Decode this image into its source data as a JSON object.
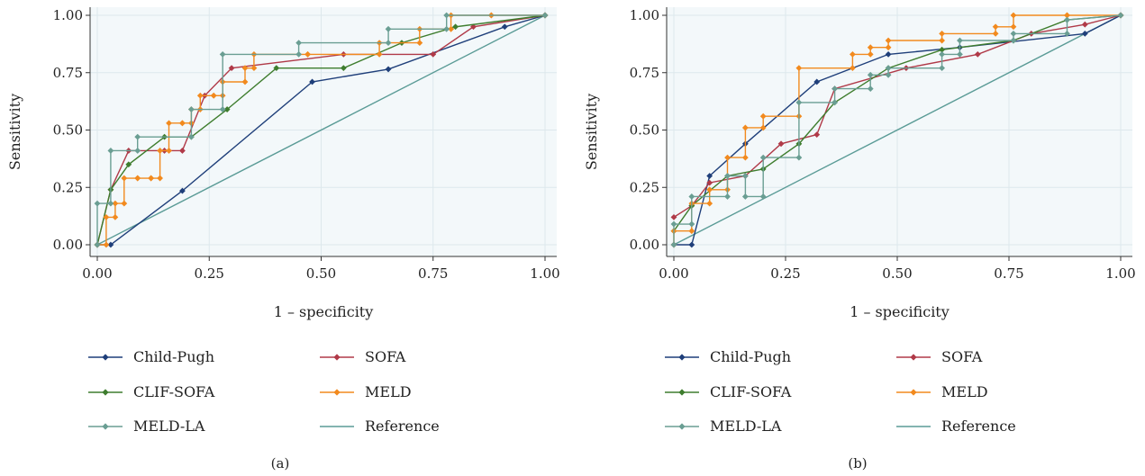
{
  "figure": {
    "panels": [
      "(a)",
      "(b)"
    ]
  },
  "chart_data": [
    {
      "type": "line",
      "panel_label": "(a)",
      "xlabel": "1 – specificity",
      "ylabel": "Sensitivity",
      "xlim": [
        0,
        1
      ],
      "ylim": [
        0,
        1
      ],
      "xticks": [
        "0.00",
        "0.25",
        "0.50",
        "0.75",
        "1.00"
      ],
      "yticks": [
        "0.00",
        "0.25",
        "0.50",
        "0.75",
        "1.00"
      ],
      "grid": true,
      "legend_position": "bottom",
      "series": [
        {
          "name": "Child-Pugh",
          "color": "#1f3f7a",
          "marker": "diamond",
          "x": [
            0,
            0.03,
            0.19,
            0.48,
            0.65,
            0.91,
            1.0
          ],
          "y": [
            0,
            0,
            0.235,
            0.71,
            0.765,
            0.95,
            1.0
          ]
        },
        {
          "name": "SOFA",
          "color": "#b03a48",
          "marker": "diamond",
          "x": [
            0,
            0.03,
            0.07,
            0.15,
            0.19,
            0.24,
            0.3,
            0.55,
            0.75,
            0.84,
            1.0
          ],
          "y": [
            0,
            0.24,
            0.41,
            0.41,
            0.41,
            0.65,
            0.77,
            0.83,
            0.83,
            0.95,
            1.0
          ]
        },
        {
          "name": "CLIF-SOFA",
          "color": "#3e7d2e",
          "marker": "diamond",
          "x": [
            0,
            0.03,
            0.07,
            0.15,
            0.21,
            0.29,
            0.4,
            0.55,
            0.68,
            0.8,
            1.0
          ],
          "y": [
            0,
            0.24,
            0.35,
            0.47,
            0.47,
            0.59,
            0.77,
            0.77,
            0.88,
            0.95,
            1.0
          ]
        },
        {
          "name": "MELD",
          "color": "#f28a1e",
          "marker": "diamond",
          "x": [
            0,
            0.02,
            0.02,
            0.04,
            0.04,
            0.06,
            0.06,
            0.09,
            0.09,
            0.12,
            0.12,
            0.14,
            0.14,
            0.16,
            0.16,
            0.19,
            0.19,
            0.21,
            0.21,
            0.23,
            0.23,
            0.26,
            0.26,
            0.28,
            0.28,
            0.33,
            0.33,
            0.35,
            0.35,
            0.47,
            0.47,
            0.63,
            0.63,
            0.72,
            0.72,
            0.79,
            0.79,
            0.88,
            0.88,
            1.0
          ],
          "y": [
            0,
            0,
            0.12,
            0.12,
            0.18,
            0.18,
            0.29,
            0.29,
            0.29,
            0.29,
            0.29,
            0.29,
            0.41,
            0.41,
            0.53,
            0.53,
            0.53,
            0.53,
            0.59,
            0.59,
            0.65,
            0.65,
            0.65,
            0.65,
            0.71,
            0.71,
            0.77,
            0.77,
            0.83,
            0.83,
            0.83,
            0.83,
            0.88,
            0.88,
            0.94,
            0.94,
            1.0,
            1.0,
            1.0,
            1.0
          ]
        },
        {
          "name": "MELD-LA",
          "color": "#6a9e93",
          "marker": "diamond",
          "x": [
            0,
            0,
            0.03,
            0.03,
            0.09,
            0.09,
            0.21,
            0.21,
            0.28,
            0.28,
            0.45,
            0.45,
            0.65,
            0.65,
            0.78,
            0.78,
            1.0
          ],
          "y": [
            0,
            0.18,
            0.18,
            0.41,
            0.41,
            0.47,
            0.47,
            0.59,
            0.59,
            0.83,
            0.83,
            0.88,
            0.88,
            0.94,
            0.94,
            1.0,
            1.0
          ]
        },
        {
          "name": "Reference",
          "color": "#5a9b96",
          "marker": "none",
          "x": [
            0,
            1
          ],
          "y": [
            0,
            1
          ]
        }
      ]
    },
    {
      "type": "line",
      "panel_label": "(b)",
      "xlabel": "1 – specificity",
      "ylabel": "Sensitivity",
      "xlim": [
        0,
        1
      ],
      "ylim": [
        0,
        1
      ],
      "xticks": [
        "0.00",
        "0.25",
        "0.50",
        "0.75",
        "1.00"
      ],
      "yticks": [
        "0.00",
        "0.25",
        "0.50",
        "0.75",
        "1.00"
      ],
      "grid": true,
      "legend_position": "bottom",
      "series": [
        {
          "name": "Child-Pugh",
          "color": "#1f3f7a",
          "marker": "diamond",
          "x": [
            0,
            0.04,
            0.08,
            0.16,
            0.32,
            0.48,
            0.64,
            0.92,
            1.0
          ],
          "y": [
            0,
            0,
            0.3,
            0.44,
            0.71,
            0.83,
            0.86,
            0.92,
            1.0
          ]
        },
        {
          "name": "SOFA",
          "color": "#b03a48",
          "marker": "diamond",
          "x": [
            0,
            0.04,
            0.08,
            0.16,
            0.24,
            0.32,
            0.36,
            0.52,
            0.68,
            0.8,
            0.92,
            1.0
          ],
          "y": [
            0.12,
            0.17,
            0.27,
            0.3,
            0.44,
            0.48,
            0.68,
            0.77,
            0.83,
            0.92,
            0.96,
            1.0
          ]
        },
        {
          "name": "CLIF-SOFA",
          "color": "#3e7d2e",
          "marker": "diamond",
          "x": [
            0,
            0.04,
            0.12,
            0.2,
            0.28,
            0.36,
            0.48,
            0.6,
            0.76,
            0.88,
            1.0
          ],
          "y": [
            0.06,
            0.17,
            0.3,
            0.33,
            0.44,
            0.62,
            0.77,
            0.85,
            0.89,
            0.98,
            1.0
          ]
        },
        {
          "name": "MELD",
          "color": "#f28a1e",
          "marker": "diamond",
          "x": [
            0,
            0,
            0.04,
            0.04,
            0.08,
            0.08,
            0.12,
            0.12,
            0.16,
            0.16,
            0.2,
            0.2,
            0.28,
            0.28,
            0.4,
            0.4,
            0.44,
            0.44,
            0.48,
            0.48,
            0.6,
            0.6,
            0.72,
            0.72,
            0.76,
            0.76,
            0.88,
            0.88,
            1.0
          ],
          "y": [
            0,
            0.06,
            0.06,
            0.18,
            0.18,
            0.24,
            0.24,
            0.38,
            0.38,
            0.51,
            0.51,
            0.56,
            0.56,
            0.77,
            0.77,
            0.83,
            0.83,
            0.86,
            0.86,
            0.89,
            0.89,
            0.92,
            0.92,
            0.95,
            0.95,
            1.0,
            1.0,
            1.0,
            1.0
          ]
        },
        {
          "name": "MELD-LA",
          "color": "#6a9e93",
          "marker": "diamond",
          "x": [
            0,
            0,
            0.04,
            0.04,
            0.12,
            0.12,
            0.16,
            0.16,
            0.2,
            0.2,
            0.28,
            0.28,
            0.36,
            0.36,
            0.44,
            0.44,
            0.48,
            0.48,
            0.6,
            0.6,
            0.64,
            0.64,
            0.76,
            0.76,
            0.88,
            0.88,
            1.0
          ],
          "y": [
            0,
            0.09,
            0.09,
            0.21,
            0.21,
            0.3,
            0.3,
            0.21,
            0.21,
            0.38,
            0.38,
            0.62,
            0.62,
            0.68,
            0.68,
            0.74,
            0.74,
            0.77,
            0.77,
            0.83,
            0.83,
            0.89,
            0.89,
            0.92,
            0.92,
            0.98,
            1.0
          ]
        },
        {
          "name": "Reference",
          "color": "#5a9b96",
          "marker": "none",
          "x": [
            0,
            1
          ],
          "y": [
            0,
            1
          ]
        }
      ]
    }
  ]
}
